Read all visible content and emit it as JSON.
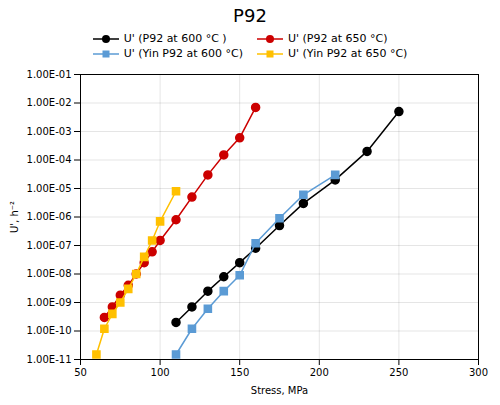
{
  "chart_data": {
    "type": "line",
    "title": "P92",
    "xlabel": "Stress, MPa",
    "ylabel": "U', h⁻²",
    "log": "y",
    "grid": true,
    "legend": "top",
    "xlim": [
      50,
      300
    ],
    "xticks": [
      50,
      100,
      150,
      200,
      250,
      300
    ],
    "ylim": [
      1e-11,
      0.1
    ],
    "yticks": [
      {
        "value": 1e-11,
        "label": "1.00E-11"
      },
      {
        "value": 1e-10,
        "label": "1.00E-10"
      },
      {
        "value": 1e-09,
        "label": "1.00E-09"
      },
      {
        "value": 1e-08,
        "label": "1.00E-08"
      },
      {
        "value": 1e-07,
        "label": "1.00E-07"
      },
      {
        "value": 1e-06,
        "label": "1.00E-06"
      },
      {
        "value": 1e-05,
        "label": "1.00E-05"
      },
      {
        "value": 0.0001,
        "label": "1.00E-04"
      },
      {
        "value": 0.001,
        "label": "1.00E-03"
      },
      {
        "value": 0.01,
        "label": "1.00E-02"
      },
      {
        "value": 0.1,
        "label": "1.00E-01"
      }
    ],
    "series": [
      {
        "name": "U' (P92 at 600 °C )",
        "color": "#000000",
        "marker": "circle",
        "x": [
          110,
          120,
          130,
          140,
          150,
          160,
          175,
          190,
          210,
          230,
          250
        ],
        "values": [
          2e-10,
          7e-10,
          2.5e-09,
          8e-09,
          2.5e-08,
          8e-08,
          5e-07,
          3e-06,
          2e-05,
          0.0002,
          0.005
        ]
      },
      {
        "name": "U' (P92 at 650 °C)",
        "color": "#cc0000",
        "marker": "circle",
        "x": [
          65,
          70,
          75,
          80,
          85,
          90,
          95,
          100,
          110,
          120,
          130,
          140,
          150,
          160
        ],
        "values": [
          3e-10,
          7e-10,
          1.8e-09,
          4e-09,
          1e-08,
          2.5e-08,
          6e-08,
          1.5e-07,
          8e-07,
          5e-06,
          3e-05,
          0.00015,
          0.0006,
          0.007
        ]
      },
      {
        "name": "U' (Yin P92 at 600 °C)",
        "color": "#5b9bd5",
        "marker": "square",
        "x": [
          110,
          120,
          130,
          140,
          150,
          160,
          175,
          190,
          210
        ],
        "values": [
          1.5e-11,
          1.2e-10,
          6e-10,
          2.5e-09,
          9e-09,
          1.2e-07,
          9e-07,
          6e-06,
          3e-05
        ]
      },
      {
        "name": "U' (Yin P92 at 650 °C)",
        "color": "#ffc000",
        "marker": "square",
        "x": [
          60,
          65,
          70,
          75,
          80,
          85,
          90,
          95,
          100,
          110
        ],
        "values": [
          1.5e-11,
          1.2e-10,
          4e-10,
          1e-09,
          3e-09,
          1e-08,
          4e-08,
          1.5e-07,
          7e-07,
          8e-06
        ]
      }
    ]
  }
}
